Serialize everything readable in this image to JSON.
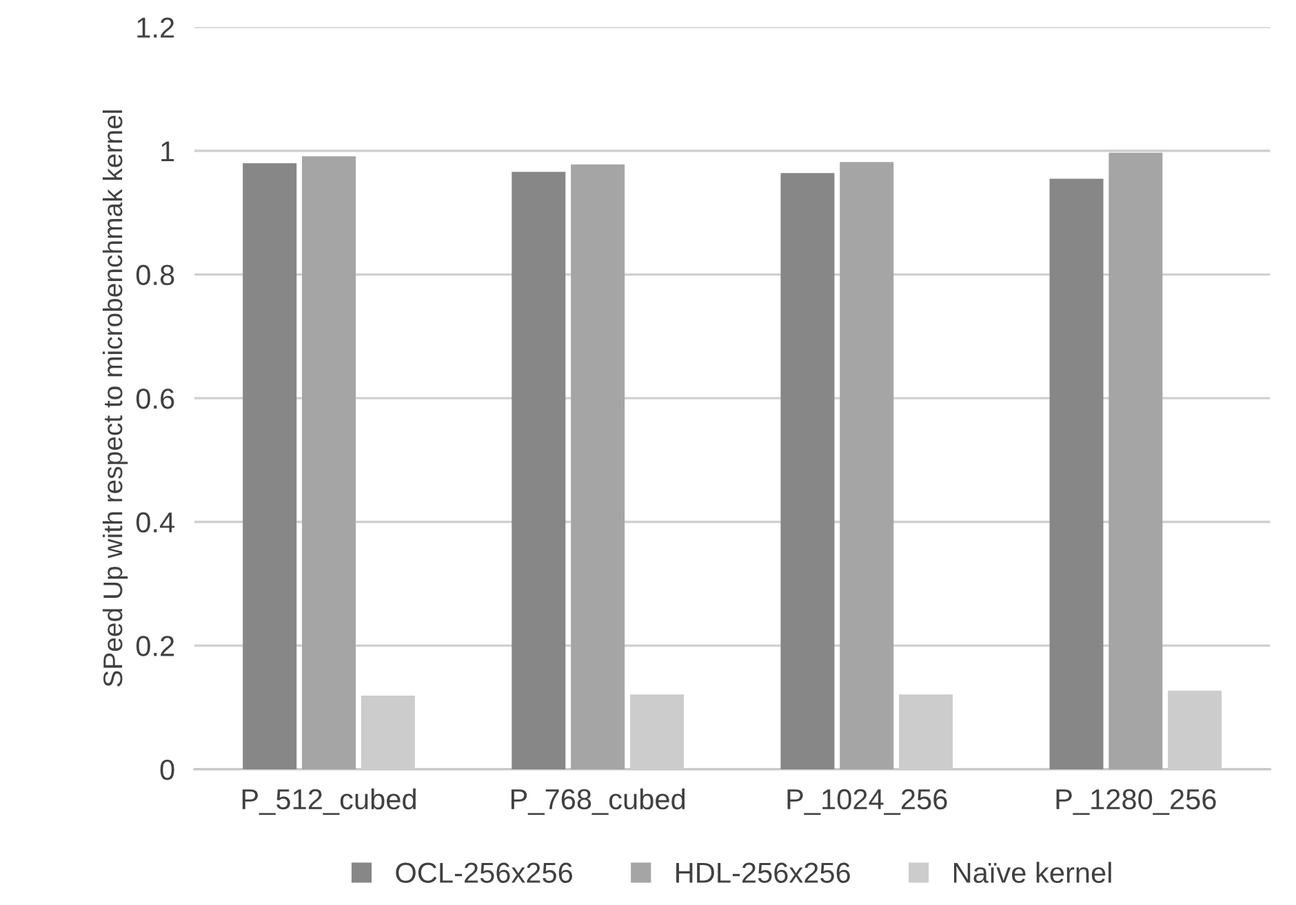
{
  "chart_data": {
    "type": "bar",
    "ylabel": "SPeed Up with respect to microbenchmak kernel",
    "categories": [
      "P_512_cubed",
      "P_768_cubed",
      "P_1024_256",
      "P_1280_256"
    ],
    "series": [
      {
        "name": "OCL-256x256",
        "color": "#878787",
        "values": [
          0.98,
          0.966,
          0.964,
          0.955
        ]
      },
      {
        "name": "HDL-256x256",
        "color": "#a5a5a5",
        "values": [
          0.991,
          0.978,
          0.982,
          0.997
        ]
      },
      {
        "name": "Naïve kernel",
        "color": "#cccccc",
        "values": [
          0.119,
          0.121,
          0.121,
          0.127
        ]
      }
    ],
    "ylim": [
      0,
      1.2
    ],
    "yticks": [
      0,
      0.2,
      0.4,
      0.6,
      0.8,
      1,
      1.2
    ],
    "grid": "y",
    "legend": "bottom"
  }
}
